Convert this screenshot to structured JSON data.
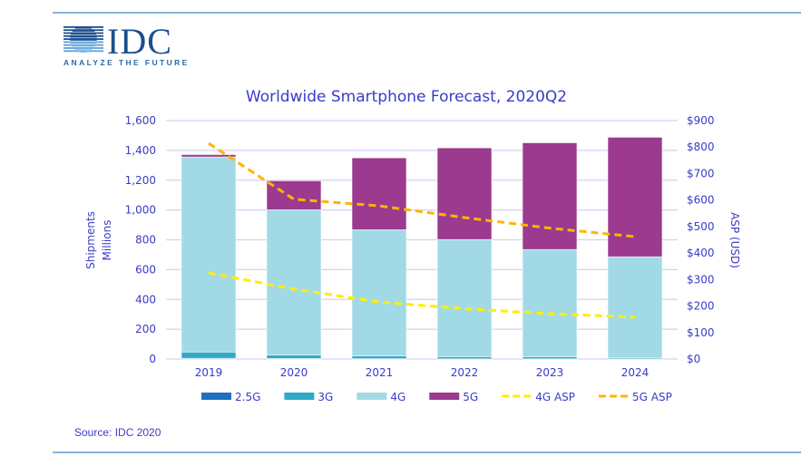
{
  "logo": {
    "text": "IDC",
    "tagline": "ANALYZE THE FUTURE"
  },
  "source": "Source: IDC 2020",
  "colors": {
    "2.5G": "#1f6fbf",
    "3G": "#2fa9c6",
    "4G": "#a1dae6",
    "5G": "#9b3a8e",
    "4G ASP": "#ffee00",
    "5G ASP": "#ffb400",
    "text": "#3b3bc8",
    "grid": "#d4d0f4",
    "frame": "#5b9bd5"
  },
  "chart_data": {
    "type": "bar",
    "stacked": true,
    "title": "Worldwide Smartphone Forecast, 2020Q2",
    "ylabel": [
      "Shipments",
      "Millions"
    ],
    "y2label": "ASP (USD)",
    "ylim": [
      0,
      1600
    ],
    "y2lim": [
      0,
      900
    ],
    "yticks": [
      "0",
      "200",
      "400",
      "600",
      "800",
      "1,000",
      "1,200",
      "1,400",
      "1,600"
    ],
    "y2ticks": [
      "$0",
      "$100",
      "$200",
      "$300",
      "$400",
      "$500",
      "$600",
      "$700",
      "$800",
      "$900"
    ],
    "grid": true,
    "legend_position": "bottom",
    "categories": [
      "2019",
      "2020",
      "2021",
      "2022",
      "2023",
      "2024"
    ],
    "series": [
      {
        "name": "2.5G",
        "type": "bar",
        "values": [
          5,
          3,
          2,
          1,
          1,
          1
        ]
      },
      {
        "name": "3G",
        "type": "bar",
        "values": [
          42,
          23,
          18,
          15,
          13,
          9
        ]
      },
      {
        "name": "4G",
        "type": "bar",
        "values": [
          1309,
          975,
          847,
          786,
          721,
          676
        ]
      },
      {
        "name": "5G",
        "type": "bar",
        "values": [
          16,
          195,
          483,
          615,
          716,
          802
        ]
      },
      {
        "name": "4G ASP",
        "type": "line",
        "axis": "right",
        "values": [
          325,
          264,
          215,
          190,
          171,
          158
        ]
      },
      {
        "name": "5G ASP",
        "type": "line",
        "axis": "right",
        "values": [
          814,
          603,
          578,
          534,
          494,
          462
        ]
      }
    ]
  }
}
